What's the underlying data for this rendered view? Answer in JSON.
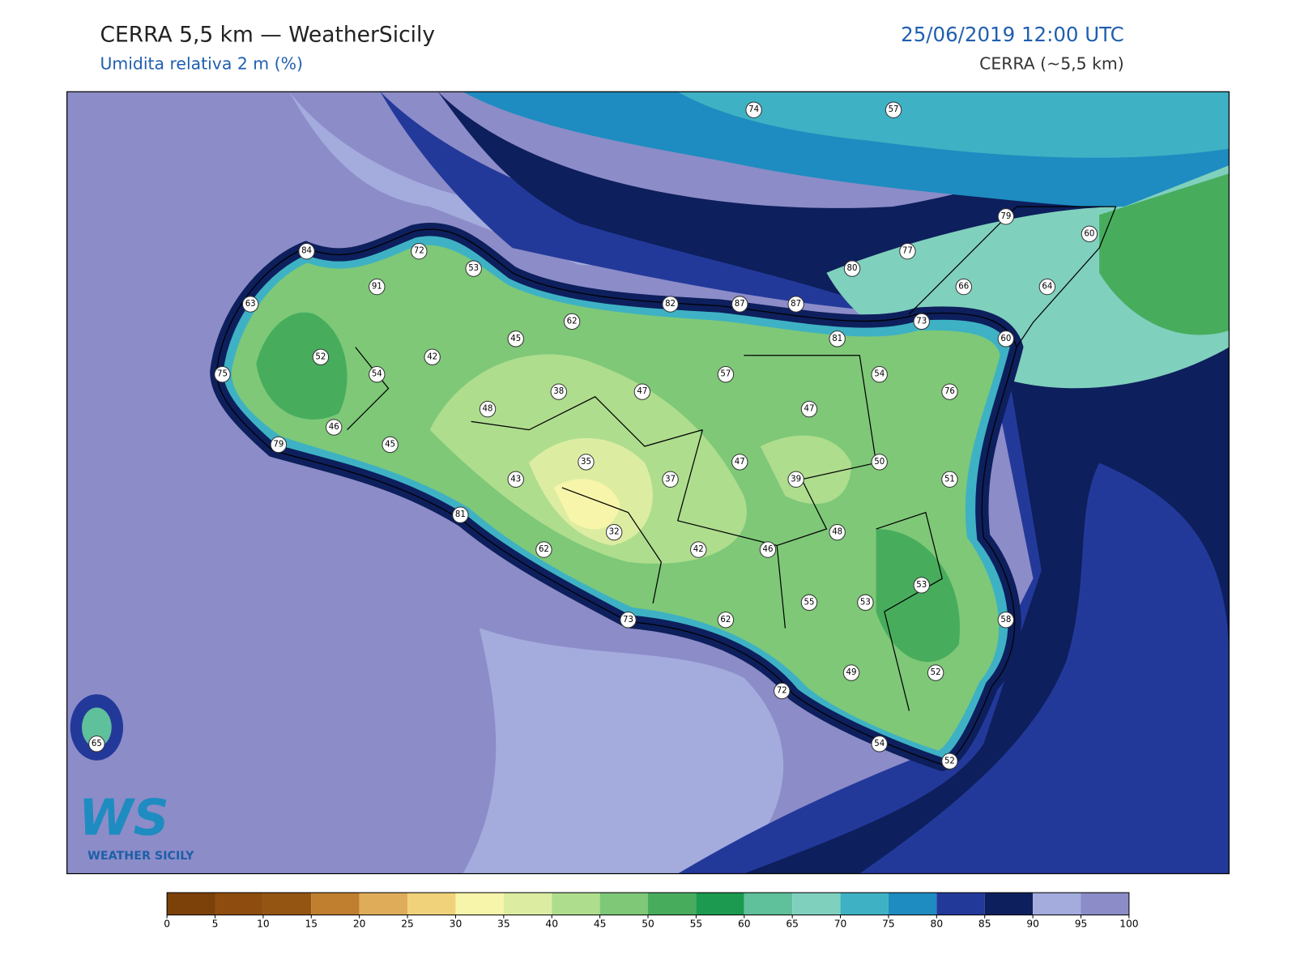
{
  "header": {
    "title": "CERRA 5,5 km — WeatherSicily",
    "subtitle": "Umidita relativa 2 m (%)",
    "datetime": "25/06/2019 12:00 UTC",
    "model": "CERRA (~5,5 km)"
  },
  "stations": [
    74,
    57,
    79,
    60,
    84,
    72,
    53,
    77,
    80,
    91,
    66,
    64,
    63,
    82,
    87,
    87,
    62,
    73,
    45,
    81,
    60,
    52,
    42,
    75,
    54,
    57,
    54,
    38,
    47,
    76,
    48,
    47,
    46,
    79,
    45,
    35,
    47,
    50,
    43,
    37,
    39,
    51,
    81,
    32,
    48,
    62,
    42,
    46,
    53,
    55,
    53,
    73,
    62,
    58,
    49,
    52,
    72,
    65,
    54,
    52
  ],
  "colorbar": {
    "ticks": [
      0,
      5,
      10,
      15,
      20,
      25,
      30,
      35,
      40,
      45,
      50,
      55,
      60,
      65,
      70,
      75,
      80,
      85,
      90,
      95,
      100
    ],
    "colors": [
      "#7b4109",
      "#8e4d0e",
      "#955512",
      "#bf7f2f",
      "#dfad5a",
      "#f0d27a",
      "#f7f5aa",
      "#dceda2",
      "#aedd8e",
      "#7ec878",
      "#47ad5d",
      "#1c9a50",
      "#5fc09c",
      "#80d0be",
      "#3eb2c4",
      "#1e8cc0",
      "#23399a",
      "#0d1f5c",
      "#a3acdd",
      "#8c8cc8"
    ]
  },
  "logo": {
    "mark": "WS",
    "name": "WEATHER SICILY"
  }
}
